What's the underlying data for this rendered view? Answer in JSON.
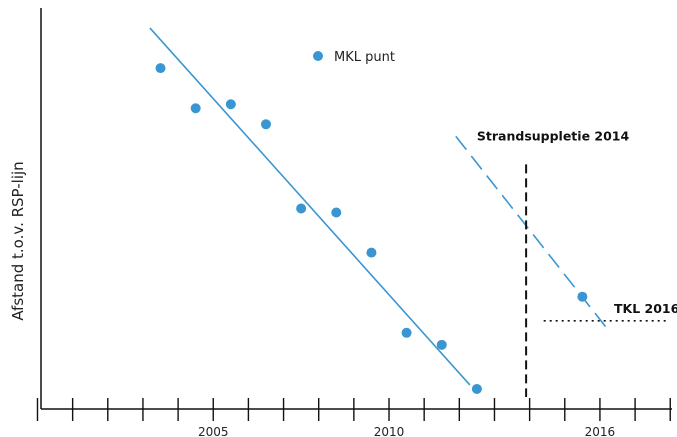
{
  "chart_data": {
    "type": "scatter",
    "title": "",
    "xlabel": "",
    "ylabel": "Afstand t.o.v. RSP-lijn",
    "y_numeric_ticks": false,
    "xlim": [
      2000.1,
      2018.05
    ],
    "ylim": [
      0,
      100
    ],
    "x_ticks": [
      2000,
      2001,
      2002,
      2003,
      2004,
      2005,
      2006,
      2007,
      2008,
      2009,
      2010,
      2011,
      2012,
      2013,
      2014,
      2015,
      2016,
      2017,
      2018
    ],
    "x_tick_labels": [
      {
        "x": 2005,
        "label": "2005"
      },
      {
        "x": 2010,
        "label": "2010"
      },
      {
        "x": 2016,
        "label": "2016"
      }
    ],
    "grid": false,
    "legend": {
      "position": "top-center",
      "entries": [
        {
          "name": "MKL punt",
          "color": "#3a96d2",
          "marker": "circle"
        }
      ]
    },
    "series": [
      {
        "name": "MKL punt",
        "type": "scatter",
        "color": "#3a96d2",
        "points": [
          {
            "x": 2003.5,
            "y": 85
          },
          {
            "x": 2004.5,
            "y": 75
          },
          {
            "x": 2005.5,
            "y": 76
          },
          {
            "x": 2006.5,
            "y": 71
          },
          {
            "x": 2007.5,
            "y": 50
          },
          {
            "x": 2008.5,
            "y": 49
          },
          {
            "x": 2009.5,
            "y": 39
          },
          {
            "x": 2010.5,
            "y": 19
          },
          {
            "x": 2011.5,
            "y": 16
          },
          {
            "x": 2012.5,
            "y": 5
          },
          {
            "x": 2015.5,
            "y": 28
          }
        ]
      }
    ],
    "trend_lines": [
      {
        "style": "solid",
        "color": "#3a96d2",
        "from": {
          "x": 2003.2,
          "y": 95
        },
        "to": {
          "x": 2012.3,
          "y": 6
        }
      },
      {
        "style": "dashed",
        "color": "#3a96d2",
        "from": {
          "x": 2011.9,
          "y": 68
        },
        "to": {
          "x": 2016.3,
          "y": 19
        }
      }
    ],
    "annotations": [
      {
        "kind": "vertical-line",
        "style": "dashed",
        "color": "#111111",
        "x": 2013.9,
        "y_from": 61,
        "y_to": 3,
        "label": "Strandsuppletie 2014",
        "label_x": 2012.5,
        "label_y": 67
      },
      {
        "kind": "horizontal-line",
        "style": "dotted",
        "color": "#111111",
        "x_from": 2014.4,
        "x_to": 2017.9,
        "y": 22,
        "label": "TKL 2016",
        "label_x": 2016.4,
        "label_y": 24
      }
    ]
  }
}
